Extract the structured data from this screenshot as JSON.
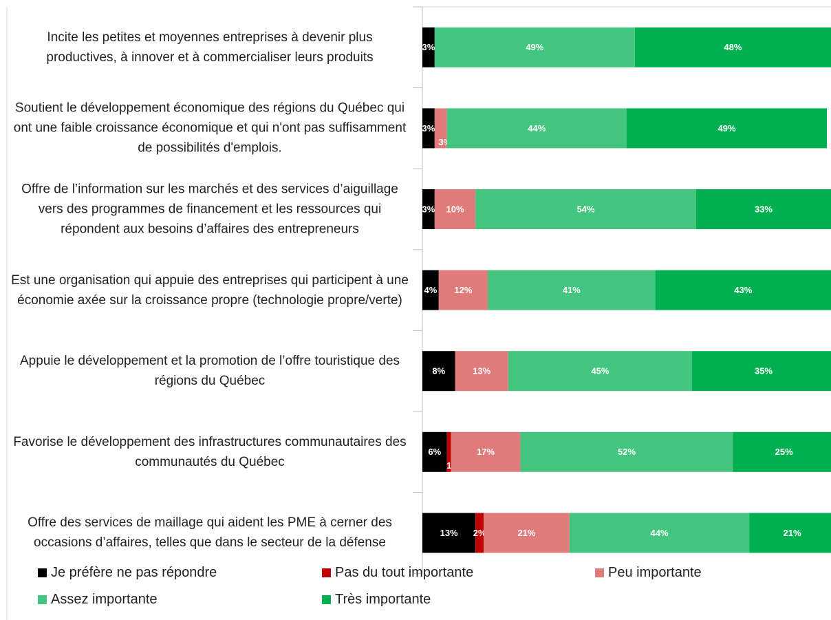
{
  "chart_data": {
    "type": "stacked-bar-horizontal",
    "categories": [
      "Incite les petites et moyennes entreprises à devenir plus productives, à innover et à commercialiser leurs produits",
      "Soutient le développement économique des régions du Québec qui ont une faible croissance économique et qui n'ont pas suffisamment de possibilités d'emplois.",
      "Offre de l’information sur les marchés et des services d’aiguillage vers des programmes de financement et les ressources qui répondent aux besoins d’affaires des entrepreneurs",
      "Est une organisation qui appuie des entreprises qui participent à une économie axée sur la croissance propre (technologie propre/verte)",
      "Appuie le développement et la promotion de l’offre touristique des régions du Québec",
      "Favorise le développement des infrastructures communautaires des communautés du Québec",
      "Offre des services de maillage qui aident les PME à cerner des occasions d’affaires, telles que dans le secteur de la défense"
    ],
    "series": [
      {
        "name": "Je préfère ne pas répondre",
        "color": "#000000",
        "values": [
          3,
          3,
          3,
          4,
          8,
          6,
          13
        ],
        "value_labels": [
          "3%",
          "3%",
          "3%",
          "4%",
          "8%",
          "6%",
          "13%"
        ]
      },
      {
        "name": "Pas du tout importante",
        "color": "#c00000",
        "values": [
          0,
          0,
          0,
          0,
          0,
          1,
          2
        ],
        "value_labels": [
          null,
          null,
          null,
          null,
          null,
          "1%",
          "2%"
        ]
      },
      {
        "name": "Peu importante",
        "color": "#e07b7b",
        "values": [
          0,
          3,
          10,
          12,
          13,
          17,
          21
        ],
        "value_labels": [
          null,
          "3%",
          "10%",
          "12%",
          "13%",
          "17%",
          "21%"
        ]
      },
      {
        "name": "Assez importante",
        "color": "#43c47f",
        "values": [
          49,
          44,
          54,
          41,
          45,
          52,
          44
        ],
        "value_labels": [
          "49%",
          "44%",
          "54%",
          "41%",
          "45%",
          "52%",
          "44%"
        ]
      },
      {
        "name": "Très importante",
        "color": "#00b050",
        "values": [
          48,
          49,
          33,
          43,
          35,
          25,
          21
        ],
        "value_labels": [
          "48%",
          "49%",
          "33%",
          "43%",
          "35%",
          "25%",
          "21%"
        ]
      }
    ],
    "xlim": [
      0,
      100
    ]
  }
}
